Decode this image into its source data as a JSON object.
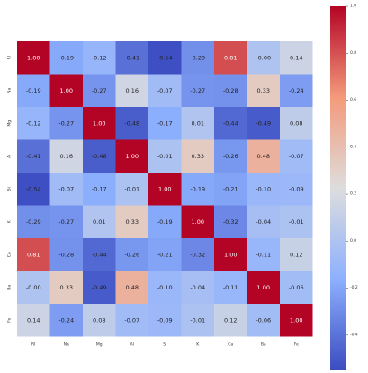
{
  "chart_data": {
    "type": "heatmap",
    "title": "",
    "xlabel": "",
    "ylabel": "",
    "x_labels": [
      "RI",
      "Na",
      "Mg",
      "Al",
      "Si",
      "K",
      "Ca",
      "Ba",
      "Fe"
    ],
    "y_labels": [
      "RI",
      "Na",
      "Mg",
      "Al",
      "Si",
      "K",
      "Ca",
      "Ba",
      "Fe"
    ],
    "values": [
      [
        1.0,
        -0.19,
        -0.12,
        -0.41,
        -0.54,
        -0.29,
        0.81,
        -0.0,
        0.14
      ],
      [
        -0.19,
        1.0,
        -0.27,
        0.16,
        -0.07,
        -0.27,
        -0.28,
        0.33,
        -0.24
      ],
      [
        -0.12,
        -0.27,
        1.0,
        -0.48,
        -0.17,
        0.01,
        -0.44,
        -0.49,
        0.08
      ],
      [
        -0.41,
        0.16,
        -0.48,
        1.0,
        -0.01,
        0.33,
        -0.26,
        0.48,
        -0.07
      ],
      [
        -0.54,
        -0.07,
        -0.17,
        -0.01,
        1.0,
        -0.19,
        -0.21,
        -0.1,
        -0.09
      ],
      [
        -0.29,
        -0.27,
        0.01,
        0.33,
        -0.19,
        1.0,
        -0.32,
        -0.04,
        -0.01
      ],
      [
        0.81,
        -0.28,
        -0.44,
        -0.26,
        -0.21,
        -0.32,
        1.0,
        -0.11,
        0.12
      ],
      [
        -0.0,
        0.33,
        -0.49,
        0.48,
        -0.1,
        -0.04,
        -0.11,
        1.0,
        -0.06
      ],
      [
        0.14,
        -0.24,
        0.08,
        -0.07,
        -0.09,
        -0.01,
        0.12,
        -0.06,
        1.0
      ]
    ],
    "value_format": "2 decimals",
    "colormap": "coolwarm",
    "colorbar": {
      "range": [
        -0.55,
        1.0
      ],
      "ticks": [
        -0.4,
        -0.2,
        0.0,
        0.2,
        0.4,
        0.6,
        0.8,
        1.0
      ],
      "tick_labels": [
        "-0.4",
        "-0.2",
        "0.0",
        "0.2",
        "0.4",
        "0.6",
        "0.8",
        "1.0"
      ],
      "placement": "right"
    },
    "colors": {
      "cold": "#3b4cc0",
      "neutral": "#dddddd",
      "hot": "#b40426"
    }
  }
}
